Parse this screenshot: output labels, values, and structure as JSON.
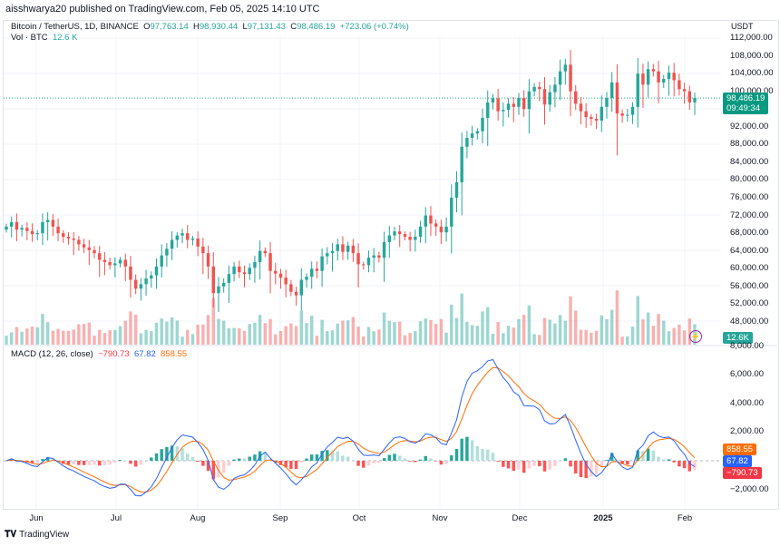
{
  "publisher": "aisshwarya20 published on TradingView.com, Feb 05, 2025 14:10 UTC",
  "legend": {
    "symbol": "Bitcoin / TetherUS, 1D, BINANCE",
    "o_label": "O",
    "open": "97,763.14",
    "h_label": "H",
    "high": "98,930.44",
    "l_label": "L",
    "low": "97,131.43",
    "c_label": "C",
    "close": "98,486.19",
    "change": "+723.06 (+0.74%)",
    "vol_label": "Vol · BTC",
    "vol": "12.6 K"
  },
  "currency": "USDT",
  "price_axis": [
    "112,000.00",
    "108,000.00",
    "104,000.00",
    "100,000.00",
    "92,000.00",
    "88,000.00",
    "84,000.00",
    "80,000.00",
    "76,000.00",
    "72,000.00",
    "68,000.00",
    "64,000.00",
    "60,000.00",
    "56,000.00",
    "52,000.00",
    "48,000.00"
  ],
  "price_axis_values": [
    112000,
    108000,
    104000,
    100000,
    92000,
    88000,
    84000,
    80000,
    76000,
    72000,
    68000,
    64000,
    60000,
    56000,
    52000,
    48000
  ],
  "last_price": {
    "price": "98,486.19",
    "countdown": "09:49:34"
  },
  "volume_tag": "12.6K",
  "macd": {
    "label": "MACD (12, 26, close)",
    "hist": "−790.73",
    "macd": "67.82",
    "signal": "858.55",
    "axis": [
      "8,000.00",
      "6,000.00",
      "4,000.00",
      "2,000.00",
      "−2,000.00"
    ],
    "axis_values": [
      8000,
      6000,
      4000,
      2000,
      -2000
    ]
  },
  "months": [
    "Jun",
    "Jul",
    "Aug",
    "Sep",
    "Oct",
    "Nov",
    "Dec",
    "2025",
    "Feb"
  ],
  "colors": {
    "up": "#26a69a",
    "down": "#ef5350",
    "macd": "#2962ff",
    "signal": "#ff6d00"
  },
  "brand": "TradingView",
  "chart_data": {
    "type": "candlestick",
    "interval": "1D",
    "x_range": [
      "2024-05-20",
      "2025-02-05"
    ],
    "ylim": [
      46000,
      114000
    ],
    "closes": [
      69500,
      70500,
      68800,
      69200,
      68500,
      67800,
      68000,
      70500,
      71000,
      69500,
      68000,
      67200,
      66800,
      66500,
      65500,
      64800,
      64200,
      63500,
      62000,
      61500,
      60800,
      61200,
      62000,
      60500,
      57500,
      55500,
      56500,
      57800,
      58500,
      60500,
      63000,
      64500,
      66500,
      67500,
      68000,
      66500,
      66800,
      65000,
      63500,
      60500,
      54500,
      56000,
      56800,
      58800,
      60500,
      59200,
      58800,
      60200,
      61500,
      64000,
      63500,
      59500,
      58900,
      58000,
      56500,
      54800,
      54000,
      57500,
      58200,
      60000,
      59500,
      62800,
      63500,
      64000,
      65500,
      63800,
      65200,
      63500,
      61000,
      60800,
      62500,
      63000,
      62500,
      66000,
      67500,
      68400,
      67800,
      67200,
      66500,
      67200,
      69500,
      72000,
      70200,
      69500,
      68200,
      69500,
      76000,
      79500,
      87500,
      89500,
      90500,
      91000,
      94000,
      97500,
      98400,
      95500,
      95800,
      97200,
      96500,
      98500,
      96000,
      100000,
      101000,
      100500,
      97000,
      99800,
      101500,
      104500,
      106000,
      100000,
      97200,
      95500,
      94200,
      93800,
      93400,
      96500,
      98500,
      102000,
      95000,
      94500,
      94700,
      96500,
      104000,
      101500,
      105000,
      104500,
      102000,
      102800,
      104200,
      102500,
      100500,
      100000,
      97500,
      98486
    ]
  }
}
